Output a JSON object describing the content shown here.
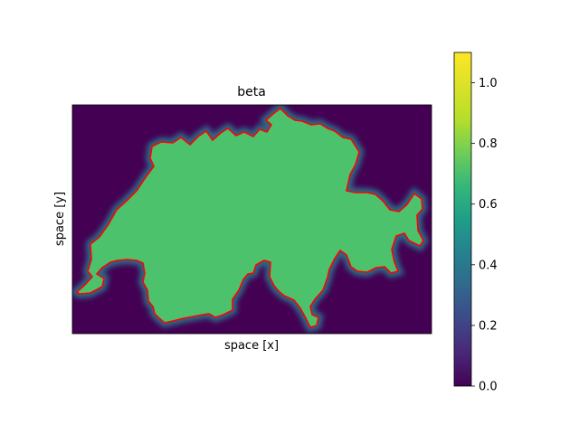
{
  "chart_data": {
    "type": "heatmap",
    "title": "beta",
    "xlabel": "space [x]",
    "ylabel": "space [y]",
    "x_ticks_shown": false,
    "y_ticks_shown": false,
    "grid": false,
    "colormap": "viridis",
    "colorbar": {
      "vmin": 0.0,
      "vmax": 1.1,
      "ticks": [
        0.0,
        0.2,
        0.4,
        0.6,
        0.8,
        1.0
      ],
      "tick_labels": [
        "0.0",
        "0.2",
        "0.4",
        "0.6",
        "0.8",
        "1.0"
      ],
      "placement": "right"
    },
    "field_values": {
      "inside_region": 0.8,
      "outside_region": 0.0
    },
    "region": "Switzerland",
    "region_fill_color": "#4cc26c",
    "background_color": "#440154",
    "outline_color": "#ff0000"
  }
}
